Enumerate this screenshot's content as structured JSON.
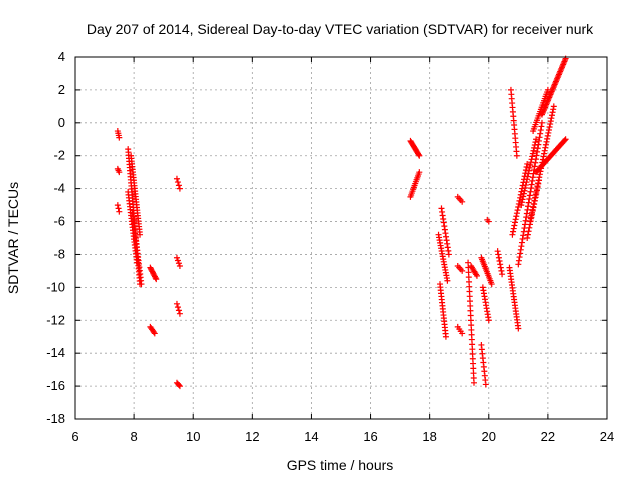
{
  "chart_data": {
    "type": "scatter",
    "title": "Day 207 of 2014, Sidereal Day-to-day VTEC variation (SDTVAR) for receiver nurk",
    "xlabel": "GPS time / hours",
    "ylabel": "SDTVAR / TECUs",
    "xlim": [
      6,
      24
    ],
    "ylim": [
      -18,
      4
    ],
    "xticks": [
      6,
      8,
      10,
      12,
      14,
      16,
      18,
      20,
      22,
      24
    ],
    "yticks": [
      -18,
      -16,
      -14,
      -12,
      -10,
      -8,
      -6,
      -4,
      -2,
      0,
      2,
      4
    ],
    "grid": true,
    "marker": "+",
    "color": "#ff0000",
    "segments": [
      {
        "x0": 7.45,
        "x1": 7.5,
        "y0": -0.5,
        "y1": -0.9,
        "n": 4
      },
      {
        "x0": 7.45,
        "x1": 7.5,
        "y0": -2.8,
        "y1": -3.0,
        "n": 3
      },
      {
        "x0": 7.45,
        "x1": 7.5,
        "y0": -5.0,
        "y1": -5.4,
        "n": 3
      },
      {
        "x0": 7.8,
        "x1": 8.2,
        "y0": -1.6,
        "y1": -9.8,
        "n": 45
      },
      {
        "x0": 7.9,
        "x1": 8.2,
        "y0": -2.0,
        "y1": -6.8,
        "n": 30
      },
      {
        "x0": 7.8,
        "x1": 8.1,
        "y0": -4.2,
        "y1": -8.5,
        "n": 25
      },
      {
        "x0": 7.95,
        "x1": 8.25,
        "y0": -5.5,
        "y1": -9.8,
        "n": 22
      },
      {
        "x0": 8.55,
        "x1": 8.75,
        "y0": -8.8,
        "y1": -9.5,
        "n": 10
      },
      {
        "x0": 8.55,
        "x1": 8.7,
        "y0": -12.4,
        "y1": -12.8,
        "n": 6
      },
      {
        "x0": 9.45,
        "x1": 9.55,
        "y0": -3.4,
        "y1": -4.0,
        "n": 4
      },
      {
        "x0": 9.45,
        "x1": 9.55,
        "y0": -8.2,
        "y1": -8.7,
        "n": 4
      },
      {
        "x0": 9.45,
        "x1": 9.55,
        "y0": -11.0,
        "y1": -11.6,
        "n": 4
      },
      {
        "x0": 9.45,
        "x1": 9.55,
        "y0": -15.8,
        "y1": -16.0,
        "n": 4
      },
      {
        "x0": 17.35,
        "x1": 17.65,
        "y0": -1.1,
        "y1": -2.0,
        "n": 14
      },
      {
        "x0": 17.35,
        "x1": 17.65,
        "y0": -4.5,
        "y1": -3.0,
        "n": 14
      },
      {
        "x0": 18.3,
        "x1": 18.6,
        "y0": -6.8,
        "y1": -9.6,
        "n": 18
      },
      {
        "x0": 18.4,
        "x1": 18.65,
        "y0": -5.2,
        "y1": -8.0,
        "n": 14
      },
      {
        "x0": 18.35,
        "x1": 18.55,
        "y0": -9.8,
        "y1": -13.0,
        "n": 18
      },
      {
        "x0": 18.95,
        "x1": 19.1,
        "y0": -4.5,
        "y1": -4.8,
        "n": 4
      },
      {
        "x0": 18.95,
        "x1": 19.1,
        "y0": -8.7,
        "y1": -9.0,
        "n": 4
      },
      {
        "x0": 18.95,
        "x1": 19.1,
        "y0": -12.4,
        "y1": -12.8,
        "n": 4
      },
      {
        "x0": 19.3,
        "x1": 19.5,
        "y0": -8.5,
        "y1": -15.8,
        "n": 26
      },
      {
        "x0": 19.4,
        "x1": 19.6,
        "y0": -8.7,
        "y1": -9.3,
        "n": 8
      },
      {
        "x0": 19.75,
        "x1": 20.1,
        "y0": -8.2,
        "y1": -9.8,
        "n": 16
      },
      {
        "x0": 19.8,
        "x1": 20.0,
        "y0": -10.0,
        "y1": -12.0,
        "n": 12
      },
      {
        "x0": 19.75,
        "x1": 19.9,
        "y0": -13.5,
        "y1": -15.9,
        "n": 10
      },
      {
        "x0": 19.95,
        "x1": 20.0,
        "y0": -5.9,
        "y1": -6.0,
        "n": 2
      },
      {
        "x0": 20.3,
        "x1": 20.45,
        "y0": -7.8,
        "y1": -9.2,
        "n": 8
      },
      {
        "x0": 20.7,
        "x1": 21.0,
        "y0": -8.8,
        "y1": -12.5,
        "n": 22
      },
      {
        "x0": 20.75,
        "x1": 20.95,
        "y0": 2.0,
        "y1": -2.0,
        "n": 16
      },
      {
        "x0": 20.8,
        "x1": 21.3,
        "y0": -6.8,
        "y1": -2.5,
        "n": 24
      },
      {
        "x0": 21.0,
        "x1": 21.8,
        "y0": -8.6,
        "y1": 0.0,
        "n": 40
      },
      {
        "x0": 21.1,
        "x1": 21.6,
        "y0": -5.0,
        "y1": -1.0,
        "n": 24
      },
      {
        "x0": 21.4,
        "x1": 22.2,
        "y0": -6.0,
        "y1": 1.0,
        "n": 40
      },
      {
        "x0": 21.6,
        "x1": 22.6,
        "y0": -3.0,
        "y1": -1.0,
        "n": 40
      },
      {
        "x0": 21.8,
        "x1": 22.6,
        "y0": 0.5,
        "y1": 3.9,
        "n": 40
      },
      {
        "x0": 21.5,
        "x1": 22.0,
        "y0": -0.5,
        "y1": 2.0,
        "n": 20
      },
      {
        "x0": 21.3,
        "x1": 21.7,
        "y0": -7.0,
        "y1": -3.5,
        "n": 18
      }
    ]
  }
}
